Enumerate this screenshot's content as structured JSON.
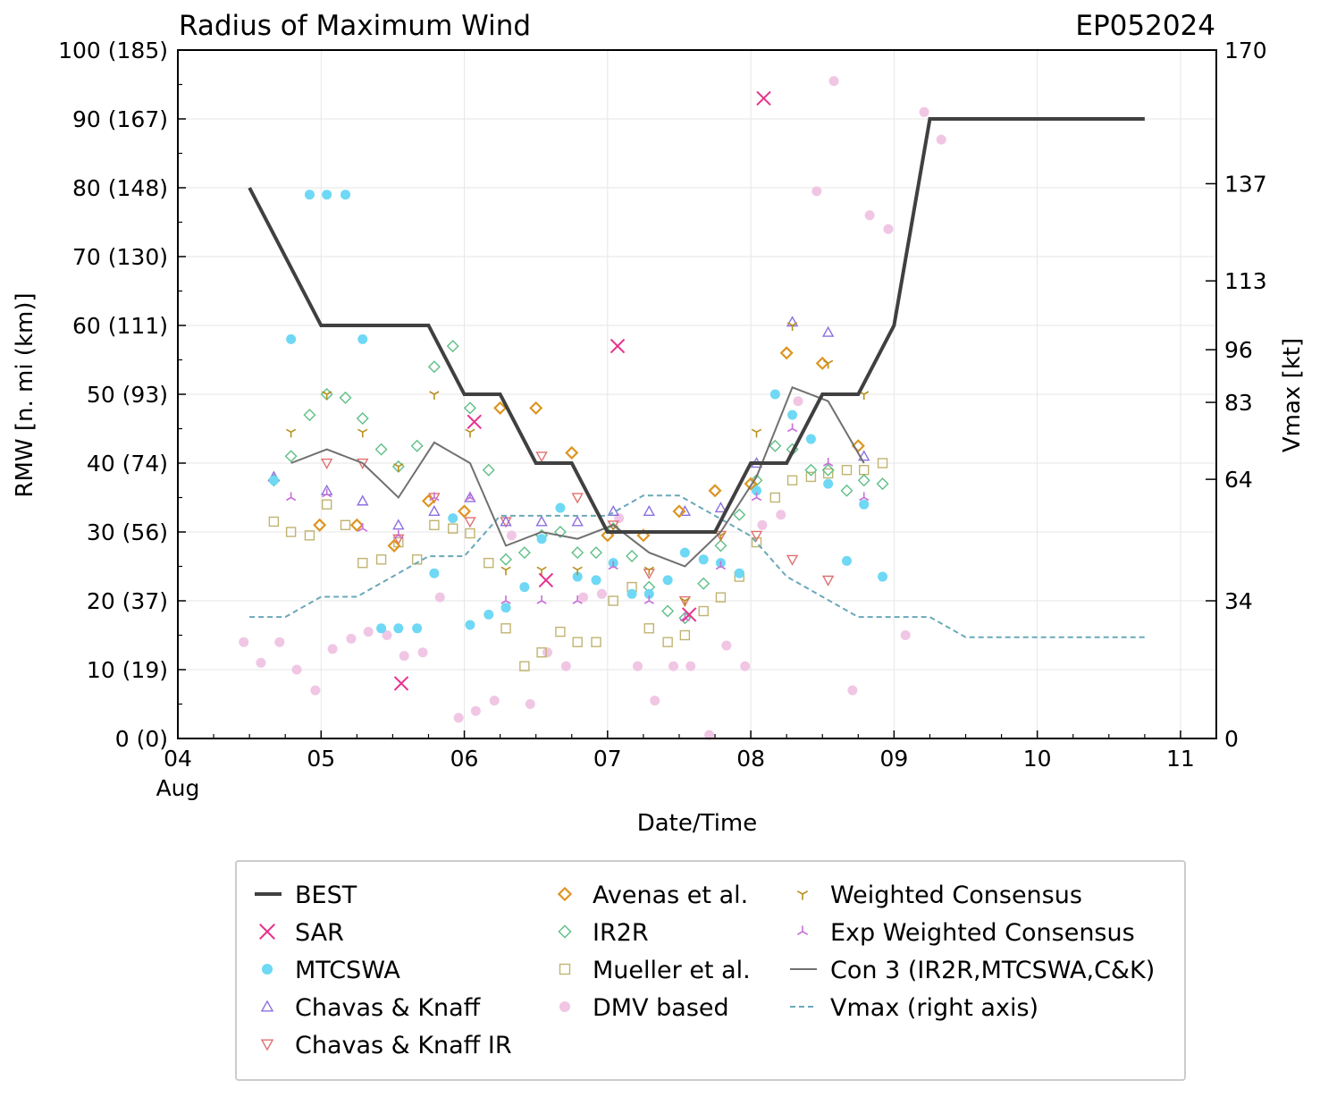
{
  "chart_data": {
    "type": "scatter",
    "title": "Radius of Maximum Wind",
    "storm_id": "EP052024",
    "xlabel": "Date/Time",
    "ylabel": "RMW [n. mi (km)]",
    "y2label": "Vmax [kt]",
    "xlim": [
      4.0,
      11.25
    ],
    "ylim": [
      0,
      100
    ],
    "y2lim": [
      0,
      170
    ],
    "x_month_label": "Aug",
    "x_ticks": [
      {
        "value": 4,
        "label": "04"
      },
      {
        "value": 5,
        "label": "05"
      },
      {
        "value": 6,
        "label": "06"
      },
      {
        "value": 7,
        "label": "07"
      },
      {
        "value": 8,
        "label": "08"
      },
      {
        "value": 9,
        "label": "09"
      },
      {
        "value": 10,
        "label": "10"
      },
      {
        "value": 11,
        "label": "11"
      }
    ],
    "y_ticks": [
      {
        "value": 0,
        "label": "0 (0)"
      },
      {
        "value": 10,
        "label": "10 (19)"
      },
      {
        "value": 20,
        "label": "20 (37)"
      },
      {
        "value": 30,
        "label": "30 (56)"
      },
      {
        "value": 40,
        "label": "40 (74)"
      },
      {
        "value": 50,
        "label": "50 (93)"
      },
      {
        "value": 60,
        "label": "60 (111)"
      },
      {
        "value": 70,
        "label": "70 (130)"
      },
      {
        "value": 80,
        "label": "80 (148)"
      },
      {
        "value": 90,
        "label": "90 (167)"
      },
      {
        "value": 100,
        "label": "100 (185)"
      }
    ],
    "y2_ticks": [
      {
        "value": 0,
        "label": "0"
      },
      {
        "value": 34,
        "label": "34"
      },
      {
        "value": 64,
        "label": "64"
      },
      {
        "value": 83,
        "label": "83"
      },
      {
        "value": 96,
        "label": "96"
      },
      {
        "value": 113,
        "label": "113"
      },
      {
        "value": 137,
        "label": "137"
      },
      {
        "value": 170,
        "label": "170"
      }
    ],
    "legend": [
      {
        "key": "best",
        "label": "BEST"
      },
      {
        "key": "sar",
        "label": "SAR"
      },
      {
        "key": "mtcswa",
        "label": "MTCSWA"
      },
      {
        "key": "ck",
        "label": "Chavas & Knaff"
      },
      {
        "key": "ckir",
        "label": "Chavas & Knaff IR"
      },
      {
        "key": "avenas",
        "label": "Avenas et al."
      },
      {
        "key": "ir2r",
        "label": "IR2R"
      },
      {
        "key": "mueller",
        "label": "Mueller et al."
      },
      {
        "key": "dmv",
        "label": "DMV based"
      },
      {
        "key": "wcons",
        "label": "Weighted Consensus"
      },
      {
        "key": "ewcons",
        "label": "Exp Weighted Consensus"
      },
      {
        "key": "con3",
        "label": "Con 3 (IR2R,MTCSWA,C&K)"
      },
      {
        "key": "vmax",
        "label": "Vmax (right axis)"
      }
    ],
    "colors": {
      "best": "#404040",
      "sar": "#e8308c",
      "mtcswa": "#6ed8f5",
      "ck": "#8c6fe0",
      "ckir": "#e07070",
      "avenas": "#dd9522",
      "ir2r": "#5fbf86",
      "mueller": "#c0b470",
      "dmv": "#f0c6e4",
      "wcons": "#b8901e",
      "ewcons": "#c870d8",
      "con3": "#707070",
      "vmax": "#6aa8b8",
      "grid": "#e6e6e6"
    },
    "series": [
      {
        "key": "best",
        "name": "BEST",
        "style": "line",
        "x": [
          4.5,
          5.0,
          5.75,
          6.0,
          6.25,
          6.5,
          6.75,
          7.0,
          7.25,
          7.5,
          7.75,
          8.0,
          8.25,
          8.5,
          8.75,
          9.0,
          9.25,
          10.75
        ],
        "y": [
          80,
          60,
          60,
          50,
          50,
          40,
          40,
          30,
          30,
          30,
          30,
          40,
          40,
          50,
          50,
          60,
          90,
          90
        ]
      },
      {
        "key": "sar",
        "name": "SAR",
        "style": "x",
        "x": [
          5.56,
          6.07,
          6.57,
          7.07,
          7.57,
          8.09
        ],
        "y": [
          8,
          46,
          23,
          57,
          18,
          93
        ]
      },
      {
        "key": "mtcswa",
        "name": "MTCSWA",
        "style": "dot",
        "x": [
          4.67,
          4.92,
          5.04,
          5.17,
          4.79,
          5.29,
          5.42,
          5.54,
          5.67,
          5.79,
          5.92,
          6.04,
          6.17,
          6.29,
          6.42,
          6.54,
          6.67,
          6.79,
          6.92,
          7.04,
          7.17,
          7.29,
          7.42,
          7.54,
          7.67,
          7.79,
          7.92,
          8.04,
          8.17,
          8.29,
          8.42,
          8.54,
          8.67,
          8.79,
          8.92
        ],
        "y": [
          37.5,
          79,
          79,
          79,
          58,
          58,
          16,
          16,
          16,
          24,
          32,
          16.5,
          18,
          19,
          22,
          29,
          33.5,
          23.5,
          23,
          25.5,
          21,
          21,
          23,
          27,
          26,
          25.5,
          24,
          36,
          50,
          47,
          43.5,
          37,
          25.8,
          34,
          23.5
        ]
      },
      {
        "key": "ck",
        "name": "Chavas & Knaff",
        "style": "tri-up",
        "x": [
          4.67,
          5.04,
          5.29,
          5.54,
          5.79,
          6.04,
          6.29,
          6.54,
          6.79,
          7.04,
          7.29,
          7.54,
          7.79,
          8.04,
          8.29,
          8.54,
          8.79
        ],
        "y": [
          38,
          36,
          34.5,
          31,
          33,
          35,
          31.5,
          31.5,
          31.5,
          33,
          33,
          33,
          33.5,
          40,
          60.5,
          59,
          41
        ]
      },
      {
        "key": "ckir",
        "name": "Chavas & Knaff IR",
        "style": "tri-down",
        "x": [
          5.04,
          5.29,
          5.54,
          5.79,
          6.04,
          6.29,
          6.54,
          6.79,
          7.04,
          7.29,
          7.54,
          7.79,
          8.04,
          8.29,
          8.54
        ],
        "y": [
          40,
          40,
          29,
          35,
          31.5,
          31.5,
          41,
          35,
          31,
          24,
          20,
          29.5,
          29.5,
          26,
          23
        ]
      },
      {
        "key": "avenas",
        "name": "Avenas et al.",
        "style": "diamond",
        "x": [
          4.99,
          5.25,
          5.51,
          5.75,
          6.0,
          6.25,
          6.5,
          6.75,
          7.0,
          7.25,
          7.5,
          7.75,
          8.0,
          8.25,
          8.5,
          8.75
        ],
        "y": [
          31,
          31,
          28,
          34.5,
          33,
          48,
          48,
          41.5,
          29.5,
          29.5,
          33,
          36,
          37,
          56,
          54.5,
          42.5
        ]
      },
      {
        "key": "ir2r",
        "name": "IR2R",
        "style": "diamond",
        "x": [
          4.67,
          4.79,
          4.92,
          5.04,
          5.17,
          5.29,
          5.42,
          5.54,
          5.67,
          5.79,
          5.92,
          6.04,
          6.17,
          6.29,
          6.42,
          6.54,
          6.67,
          6.79,
          6.92,
          7.04,
          7.17,
          7.29,
          7.42,
          7.54,
          7.67,
          7.79,
          7.92,
          8.04,
          8.17,
          8.29,
          8.42,
          8.54,
          8.67,
          8.79,
          8.92
        ],
        "y": [
          37.5,
          41,
          47,
          50,
          49.5,
          46.5,
          42,
          39.5,
          42.5,
          54,
          57,
          48,
          39,
          26,
          27,
          29.5,
          30,
          27,
          27,
          30.5,
          26.5,
          22,
          18.5,
          17.5,
          22.5,
          28,
          32.5,
          37.5,
          42.5,
          42,
          39,
          39,
          36,
          37.5,
          37
        ]
      },
      {
        "key": "mueller",
        "name": "Mueller et al.",
        "style": "square",
        "x": [
          4.67,
          4.79,
          4.92,
          5.04,
          5.17,
          5.29,
          5.42,
          5.54,
          5.67,
          5.79,
          5.92,
          6.04,
          6.17,
          6.29,
          6.42,
          6.54,
          6.67,
          6.79,
          6.92,
          7.04,
          7.17,
          7.29,
          7.42,
          7.54,
          7.67,
          7.79,
          7.92,
          8.04,
          8.17,
          8.29,
          8.42,
          8.54,
          8.67,
          8.79,
          8.92
        ],
        "y": [
          31.5,
          30,
          29.5,
          34,
          31,
          25.5,
          26,
          28.5,
          26,
          31,
          30.5,
          29.8,
          25.5,
          16,
          10.5,
          12.5,
          15.5,
          14,
          14,
          20,
          22,
          16,
          14,
          15,
          18.5,
          20.5,
          23.5,
          28.5,
          35,
          37.5,
          38,
          38.5,
          39,
          39,
          40
        ]
      },
      {
        "key": "dmv",
        "name": "DMV based",
        "style": "dot",
        "x": [
          4.46,
          4.58,
          4.71,
          4.83,
          4.96,
          5.08,
          5.21,
          5.33,
          5.46,
          5.58,
          5.71,
          5.83,
          5.96,
          6.08,
          6.21,
          6.33,
          6.46,
          6.58,
          6.71,
          6.83,
          6.96,
          7.08,
          7.21,
          7.33,
          7.46,
          7.58,
          7.71,
          7.83,
          7.96,
          8.08,
          8.21,
          8.33,
          8.46,
          8.58,
          8.71,
          8.83,
          8.96,
          9.08,
          9.21,
          9.33
        ],
        "y": [
          14,
          11,
          14,
          10,
          7,
          13,
          14.5,
          15.5,
          15,
          12,
          12.5,
          20.5,
          3,
          4,
          5.5,
          29.5,
          5,
          12.5,
          10.5,
          20.5,
          21,
          32,
          10.5,
          5.5,
          10.5,
          10.5,
          0.5,
          13.5,
          10.5,
          31,
          32.5,
          49,
          79.5,
          95.5,
          7,
          76,
          74,
          15,
          91,
          87
        ]
      },
      {
        "key": "wcons",
        "name": "Weighted Consensus",
        "style": "tri-y",
        "x": [
          4.79,
          5.04,
          5.29,
          5.54,
          5.79,
          6.04,
          6.29,
          6.54,
          6.79,
          7.04,
          7.29,
          7.54,
          7.79,
          8.04,
          8.29,
          8.54,
          8.79
        ],
        "y": [
          44.5,
          50,
          44.5,
          39.5,
          50,
          44.5,
          24.5,
          24.5,
          24.5,
          30.5,
          24.5,
          20,
          29.5,
          44.5,
          60,
          54.5,
          50
        ]
      },
      {
        "key": "ewcons",
        "name": "Exp Weighted Consensus",
        "style": "tri-ydown",
        "x": [
          4.79,
          5.04,
          5.29,
          5.54,
          5.79,
          6.04,
          6.29,
          6.54,
          6.79,
          7.04,
          7.29,
          7.54,
          7.79,
          8.04,
          8.29,
          8.54,
          8.79
        ],
        "y": [
          35,
          35.5,
          30.5,
          29.5,
          35,
          35,
          20,
          20,
          20,
          25,
          20,
          17.5,
          25,
          35,
          45,
          40,
          35
        ]
      },
      {
        "key": "con3",
        "name": "Con 3 (IR2R,MTCSWA,C&K)",
        "style": "thin-line",
        "x": [
          4.79,
          5.04,
          5.29,
          5.54,
          5.79,
          6.04,
          6.29,
          6.54,
          6.79,
          7.04,
          7.29,
          7.54,
          7.79,
          8.04,
          8.29,
          8.54,
          8.79
        ],
        "y": [
          40,
          42,
          40,
          35,
          43,
          40,
          28,
          30,
          29,
          31,
          27,
          25,
          30,
          38,
          51,
          49,
          40
        ]
      },
      {
        "key": "vmax",
        "name": "Vmax (right axis)",
        "style": "dashed-line",
        "axis": "right",
        "x": [
          4.5,
          4.75,
          5.0,
          5.25,
          5.5,
          5.75,
          6.0,
          6.25,
          6.5,
          6.75,
          7.0,
          7.25,
          7.5,
          7.75,
          8.0,
          8.25,
          8.5,
          8.75,
          9.0,
          9.25,
          9.5,
          10.0,
          10.75
        ],
        "y": [
          30,
          30,
          35,
          35,
          40,
          45,
          45,
          55,
          55,
          55,
          55,
          60,
          60,
          55,
          50,
          40,
          35,
          30,
          30,
          30,
          25,
          25,
          25
        ]
      }
    ]
  }
}
